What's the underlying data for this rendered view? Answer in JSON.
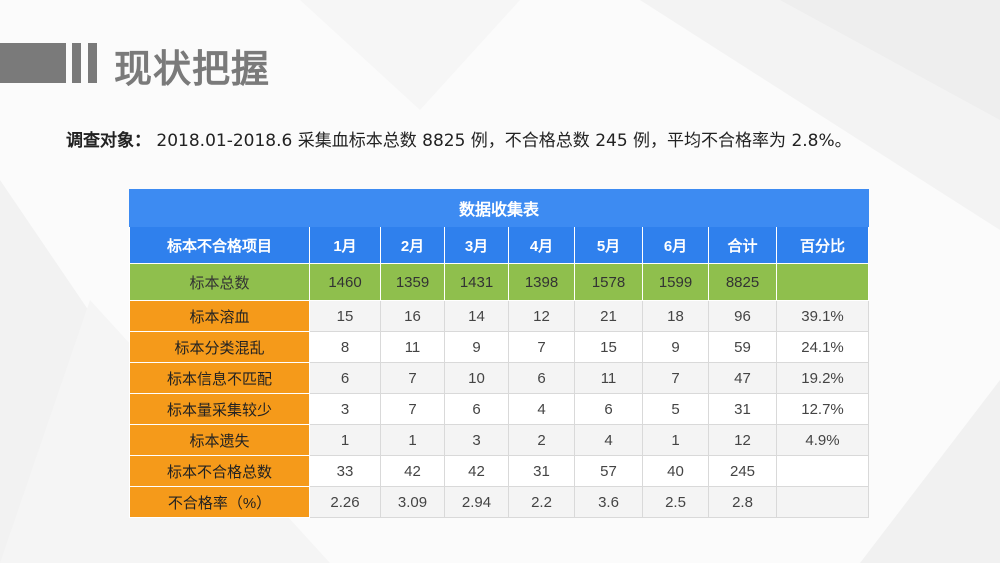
{
  "page": {
    "title": "现状把握",
    "intro_label": "调查对象：",
    "intro_text": " 2018.01-2018.6 采集血标本总数 8825 例，不合格总数 245 例，平均不合格率为 2.8%。"
  },
  "table": {
    "title": "数据收集表",
    "headers": [
      "标本不合格项目",
      "1月",
      "2月",
      "3月",
      "4月",
      "5月",
      "6月",
      "合计",
      "百分比"
    ],
    "total_row": {
      "label": "标本总数",
      "values": [
        "1460",
        "1359",
        "1431",
        "1398",
        "1578",
        "1599",
        "8825",
        ""
      ]
    },
    "rows": [
      {
        "label": "标本溶血",
        "values": [
          "15",
          "16",
          "14",
          "12",
          "21",
          "18",
          "96",
          "39.1%"
        ]
      },
      {
        "label": "标本分类混乱",
        "values": [
          "8",
          "11",
          "9",
          "7",
          "15",
          "9",
          "59",
          "24.1%"
        ]
      },
      {
        "label": "标本信息不匹配",
        "values": [
          "6",
          "7",
          "10",
          "6",
          "11",
          "7",
          "47",
          "19.2%"
        ]
      },
      {
        "label": "标本量采集较少",
        "values": [
          "3",
          "7",
          "6",
          "4",
          "6",
          "5",
          "31",
          "12.7%"
        ]
      },
      {
        "label": "标本遗失",
        "values": [
          "1",
          "1",
          "3",
          "2",
          "4",
          "1",
          "12",
          "4.9%"
        ]
      },
      {
        "label": "标本不合格总数",
        "values": [
          "33",
          "42",
          "42",
          "31",
          "57",
          "40",
          "245",
          ""
        ]
      },
      {
        "label": "不合格率（%）",
        "values": [
          "2.26",
          "3.09",
          "2.94",
          "2.2",
          "3.6",
          "2.5",
          "2.8",
          ""
        ]
      }
    ]
  },
  "colors": {
    "title_gray": "#7a7a7a",
    "table_title_blue": "#3d8bf2",
    "header_blue": "#2f80ed",
    "total_green": "#8fbf4d",
    "label_orange": "#f59a1a"
  }
}
